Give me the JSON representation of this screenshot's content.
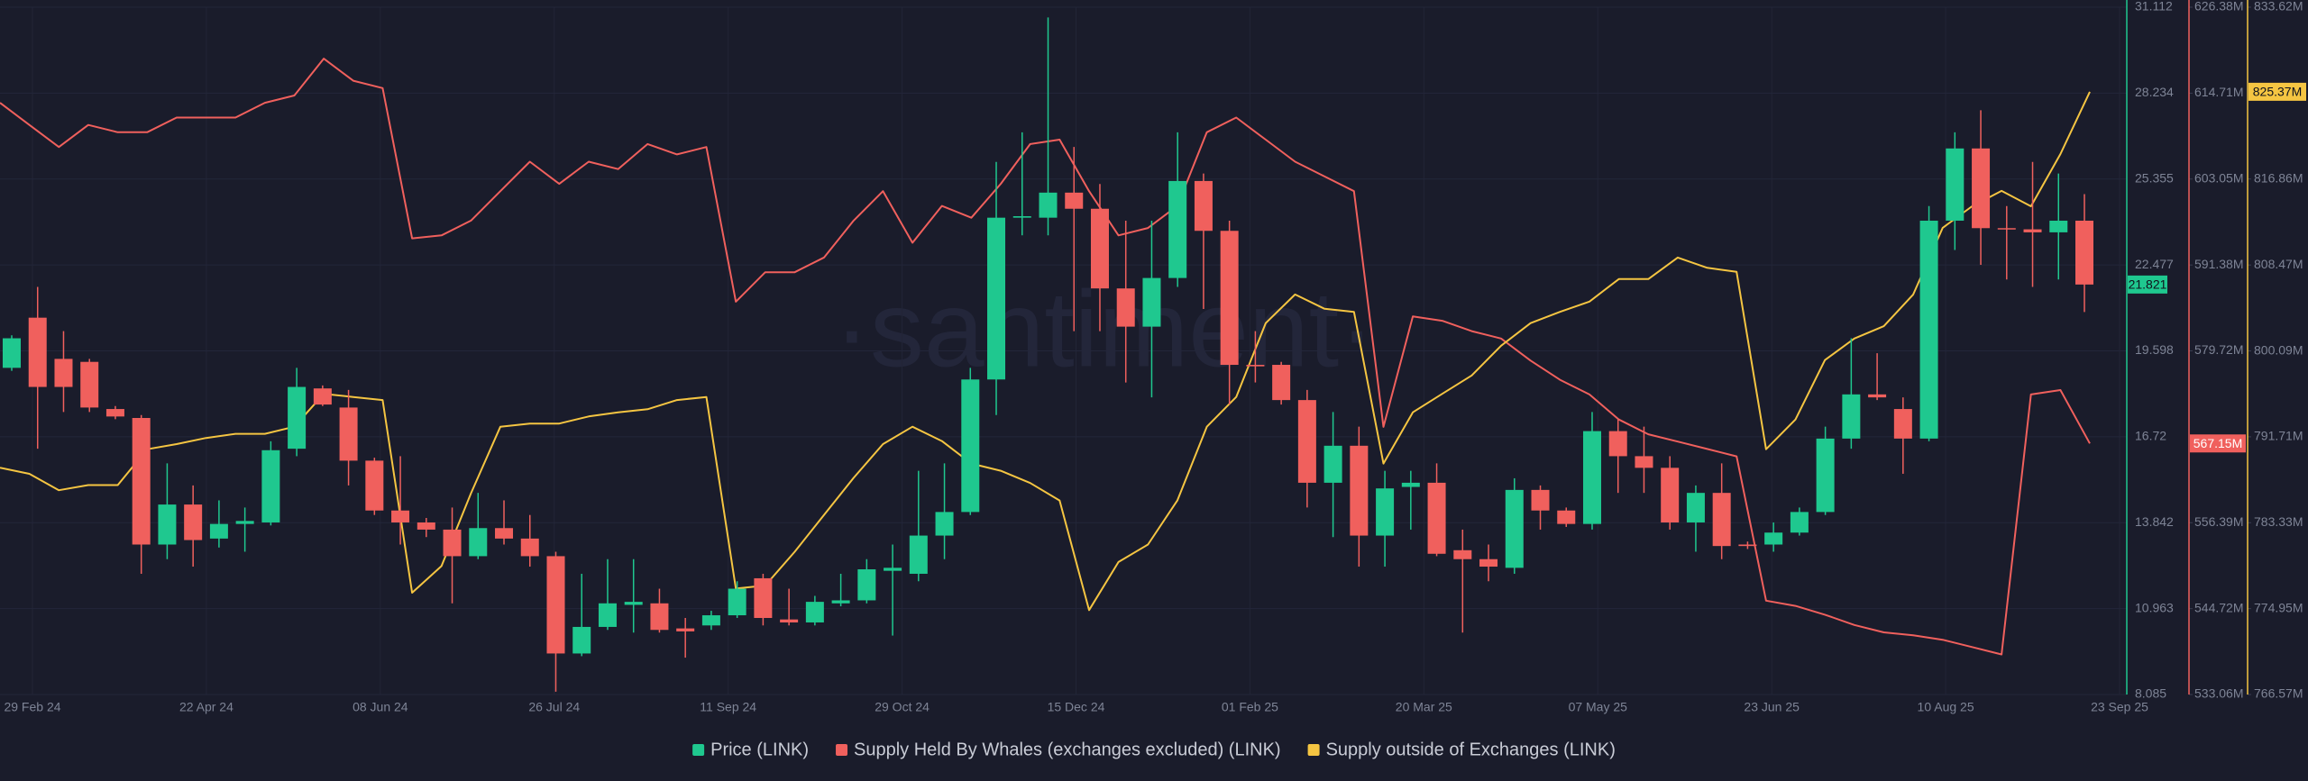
{
  "chart_data": {
    "type": "candlestick",
    "watermark": "·santiment·",
    "x_labels": [
      "29 Feb 24",
      "22 Apr 24",
      "08 Jun 24",
      "26 Jul 24",
      "11 Sep 24",
      "29 Oct 24",
      "15 Dec 24",
      "01 Feb 25",
      "20 Mar 25",
      "07 May 25",
      "23 Jun 25",
      "10 Aug 25",
      "23 Sep 25"
    ],
    "grid": true,
    "ylim": [
      8.085,
      31.112
    ],
    "yticks": [
      31.112,
      28.234,
      25.355,
      22.477,
      19.598,
      16.72,
      13.842,
      10.963,
      8.085
    ],
    "y2lim": [
      533.06,
      626.38
    ],
    "y2ticks": [
      {
        "value": 626.38,
        "label": "626.38M"
      },
      {
        "value": 614.71,
        "label": "614.71M"
      },
      {
        "value": 603.05,
        "label": "603.05M"
      },
      {
        "value": 591.38,
        "label": "591.38M"
      },
      {
        "value": 579.72,
        "label": "579.72M"
      },
      {
        "value": 556.39,
        "label": "556.39M"
      },
      {
        "value": 544.72,
        "label": "544.72M"
      },
      {
        "value": 533.06,
        "label": "533.06M"
      }
    ],
    "y3lim": [
      766.57,
      833.62
    ],
    "y3ticks": [
      {
        "value": 833.62,
        "label": "833.62M"
      },
      {
        "value": 816.86,
        "label": "816.86M"
      },
      {
        "value": 808.47,
        "label": "808.47M"
      },
      {
        "value": 800.09,
        "label": "800.09M"
      },
      {
        "value": 791.71,
        "label": "791.71M"
      },
      {
        "value": 783.33,
        "label": "783.33M"
      },
      {
        "value": 774.95,
        "label": "774.95M"
      },
      {
        "value": 766.57,
        "label": "766.57M"
      }
    ],
    "series": [
      {
        "name": "Price (LINK)",
        "type": "candlestick",
        "axis": "y",
        "color": "#1fc88f",
        "color_down": "#f0605d",
        "open": [
          19.03,
          20.71,
          19.33,
          19.23,
          17.65,
          17.35,
          13.11,
          14.45,
          13.31,
          13.8,
          13.85,
          16.32,
          18.34,
          17.7,
          15.92,
          14.25,
          13.85,
          13.61,
          12.72,
          13.66,
          13.31,
          12.72,
          9.46,
          10.35,
          11.09,
          11.14,
          10.3,
          10.4,
          10.74,
          11.98,
          10.6,
          10.5,
          11.14,
          11.24,
          12.23,
          12.13,
          13.41,
          14.2,
          18.64,
          24.06,
          24.06,
          24.9,
          24.36,
          21.69,
          20.41,
          22.04,
          25.29,
          23.62,
          19.13,
          19.13,
          17.95,
          15.18,
          16.42,
          13.41,
          15.04,
          15.18,
          12.92,
          12.62,
          12.33,
          14.94,
          14.25,
          13.8,
          16.91,
          16.07,
          15.68,
          13.85,
          14.84,
          13.11,
          13.11,
          13.51,
          14.2,
          16.66,
          18.14,
          17.65,
          16.66,
          23.96,
          26.38,
          23.71,
          23.67,
          23.57,
          23.96
        ],
        "high": [
          20.12,
          21.74,
          20.26,
          19.33,
          17.75,
          17.45,
          15.83,
          15.09,
          14.59,
          14.35,
          16.57,
          19.03,
          18.44,
          18.29,
          16.02,
          16.07,
          14.0,
          14.35,
          14.84,
          14.59,
          14.1,
          12.87,
          12.13,
          12.62,
          12.62,
          11.63,
          10.65,
          10.89,
          11.88,
          12.13,
          11.63,
          11.39,
          12.13,
          12.62,
          13.11,
          15.58,
          15.83,
          19.03,
          25.93,
          26.92,
          30.77,
          26.43,
          25.19,
          23.96,
          23.96,
          26.92,
          25.54,
          23.96,
          20.26,
          19.23,
          18.29,
          17.55,
          17.06,
          15.58,
          15.58,
          15.83,
          13.61,
          13.11,
          15.33,
          15.09,
          14.35,
          17.55,
          17.31,
          17.06,
          16.07,
          15.09,
          15.83,
          13.21,
          13.85,
          14.35,
          17.06,
          20.02,
          19.52,
          18.04,
          24.45,
          26.92,
          27.66,
          24.45,
          25.93,
          25.54,
          24.85
        ],
        "low": [
          18.93,
          16.32,
          17.55,
          17.55,
          17.31,
          12.13,
          12.62,
          12.37,
          13.01,
          12.87,
          13.75,
          16.07,
          17.75,
          15.09,
          14.1,
          13.11,
          13.36,
          11.14,
          12.62,
          13.11,
          12.37,
          8.18,
          9.37,
          10.25,
          10.16,
          10.16,
          9.32,
          10.25,
          10.65,
          10.4,
          10.4,
          10.4,
          11.04,
          11.14,
          10.06,
          11.88,
          12.62,
          14.1,
          17.45,
          23.47,
          23.47,
          20.26,
          20.26,
          18.54,
          18.04,
          21.74,
          21.0,
          17.8,
          18.54,
          17.8,
          14.35,
          13.36,
          12.37,
          12.37,
          13.61,
          12.72,
          10.16,
          11.88,
          12.13,
          13.61,
          13.7,
          13.61,
          14.84,
          14.84,
          13.61,
          12.87,
          12.62,
          12.96,
          12.87,
          13.41,
          14.1,
          16.32,
          17.95,
          15.48,
          16.57,
          22.98,
          22.48,
          21.99,
          21.74,
          21.99,
          20.9
        ],
        "close": [
          20.02,
          18.39,
          18.39,
          17.7,
          17.4,
          13.11,
          14.45,
          13.26,
          13.8,
          13.9,
          16.27,
          18.39,
          17.8,
          15.92,
          14.25,
          13.85,
          13.61,
          12.72,
          13.66,
          13.31,
          12.72,
          9.46,
          10.35,
          11.14,
          11.19,
          10.25,
          10.2,
          10.74,
          11.63,
          10.65,
          10.5,
          11.19,
          11.24,
          12.28,
          12.33,
          13.41,
          14.2,
          18.64,
          24.06,
          24.11,
          24.9,
          24.36,
          21.69,
          20.41,
          22.04,
          25.29,
          23.62,
          19.13,
          19.08,
          17.95,
          15.18,
          16.42,
          13.41,
          14.99,
          15.18,
          12.8,
          12.62,
          12.37,
          14.94,
          14.25,
          13.8,
          16.91,
          16.07,
          15.68,
          13.85,
          14.84,
          13.06,
          13.06,
          13.51,
          14.2,
          16.66,
          18.14,
          18.04,
          16.66,
          23.96,
          26.38,
          23.71,
          23.67,
          23.57,
          23.96,
          21.821
        ],
        "last_value": 21.821
      },
      {
        "name": "Supply Held By Whales (exchanges excluded) (LINK)",
        "type": "line",
        "axis": "y2",
        "color": "#f0605d",
        "values": [
          613.4,
          610.4,
          607.4,
          610.4,
          609.4,
          609.4,
          611.4,
          611.4,
          611.4,
          613.4,
          614.4,
          619.4,
          616.4,
          615.4,
          595.0,
          595.4,
          597.4,
          601.4,
          605.4,
          602.4,
          605.4,
          604.4,
          607.8,
          606.4,
          607.4,
          586.4,
          590.4,
          590.4,
          592.4,
          597.4,
          601.4,
          594.4,
          599.4,
          597.8,
          602.4,
          607.8,
          608.4,
          601.4,
          595.4,
          596.4,
          599.4,
          609.4,
          611.4,
          608.4,
          605.4,
          603.4,
          601.4,
          569.4,
          584.4,
          583.8,
          582.4,
          581.4,
          578.4,
          575.8,
          573.8,
          570.4,
          568.4,
          567.4,
          566.4,
          565.4,
          545.8,
          545.1,
          543.9,
          542.5,
          541.5,
          541.1,
          540.5,
          539.5,
          538.5,
          573.8,
          574.4,
          567.15
        ],
        "last_value": {
          "value": 567.15,
          "label": "567.15M"
        }
      },
      {
        "name": "Supply outside of Exchanges (LINK)",
        "type": "line",
        "axis": "y3",
        "color": "#f5c542",
        "values": [
          788.7,
          788.1,
          786.5,
          787.0,
          787.0,
          790.5,
          791.0,
          791.6,
          792.0,
          792.0,
          792.7,
          795.9,
          795.6,
          795.3,
          776.5,
          779.1,
          786.2,
          792.7,
          793.0,
          793.0,
          793.7,
          794.1,
          794.4,
          795.3,
          795.6,
          776.9,
          777.2,
          780.5,
          784.1,
          787.7,
          791.0,
          792.7,
          791.3,
          789.1,
          788.4,
          787.2,
          785.5,
          774.8,
          779.5,
          781.2,
          785.5,
          792.7,
          795.6,
          802.8,
          805.6,
          804.2,
          803.9,
          789.1,
          794.1,
          795.9,
          797.7,
          800.6,
          802.8,
          803.9,
          804.9,
          807.1,
          807.1,
          809.2,
          808.2,
          807.8,
          790.5,
          793.4,
          799.2,
          801.3,
          802.5,
          805.6,
          812.1,
          814.2,
          815.7,
          814.2,
          819.3,
          825.37
        ],
        "last_value": {
          "value": 825.37,
          "label": "825.37M"
        }
      }
    ]
  }
}
